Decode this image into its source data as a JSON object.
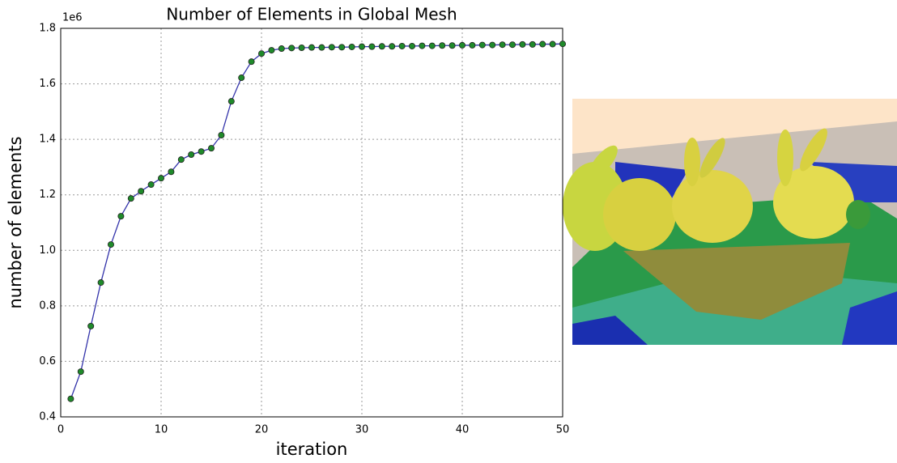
{
  "chart_data": {
    "type": "line",
    "title": "Number of Elements in Global Mesh",
    "x_label": "iteration",
    "y_label": "number of elements",
    "y_offset_label": "1e6",
    "x": [
      1,
      2,
      3,
      4,
      5,
      6,
      7,
      8,
      9,
      10,
      11,
      12,
      13,
      14,
      15,
      16,
      17,
      18,
      19,
      20,
      21,
      22,
      23,
      24,
      25,
      26,
      27,
      28,
      29,
      30,
      31,
      32,
      33,
      34,
      35,
      36,
      37,
      38,
      39,
      40,
      41,
      42,
      43,
      44,
      45,
      46,
      47,
      48,
      49,
      50
    ],
    "values": [
      0.465,
      0.563,
      0.727,
      0.884,
      1.021,
      1.123,
      1.187,
      1.213,
      1.237,
      1.26,
      1.283,
      1.327,
      1.345,
      1.356,
      1.368,
      1.415,
      1.537,
      1.622,
      1.68,
      1.709,
      1.721,
      1.727,
      1.729,
      1.73,
      1.731,
      1.731,
      1.732,
      1.732,
      1.733,
      1.734,
      1.734,
      1.735,
      1.735,
      1.736,
      1.736,
      1.737,
      1.737,
      1.738,
      1.738,
      1.739,
      1.739,
      1.74,
      1.74,
      1.741,
      1.741,
      1.742,
      1.742,
      1.743,
      1.743,
      1.744
    ],
    "color": "#3333aa",
    "marker_color": "#1f8a2a",
    "xlim": [
      0,
      50
    ],
    "xticks": [
      0,
      10,
      20,
      30,
      40,
      50
    ],
    "ylim": [
      0.4,
      1.8
    ],
    "yticks": [
      0.4,
      0.6,
      0.8,
      {
        "value": 1,
        "label": "1.0"
      },
      1.2,
      1.4,
      1.6,
      1.8
    ],
    "grid": true
  }
}
